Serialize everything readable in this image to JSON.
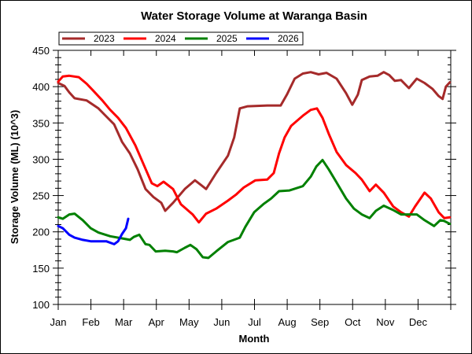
{
  "chart_data": {
    "type": "line",
    "title": "Water Storage Volume at Waranga Basin",
    "xlabel": "Month",
    "ylabel": "Storage Volume (ML) (10^3)",
    "ylim": [
      100,
      450
    ],
    "xlim": [
      0,
      12
    ],
    "yticks": [
      100,
      150,
      200,
      250,
      300,
      350,
      400,
      450
    ],
    "y_minor_step": 10,
    "x_tick_labels": [
      "Jan",
      "Feb",
      "Mar",
      "Apr",
      "May",
      "Jun",
      "Jul",
      "Aug",
      "Sep",
      "Oct",
      "Nov",
      "Dec"
    ],
    "x_units": "months since Jan 1",
    "grid": false,
    "legend_position": "top-left",
    "series": [
      {
        "name": "2023",
        "color": "#a52a2a",
        "points": [
          [
            0,
            405
          ],
          [
            0.19,
            401
          ],
          [
            0.34,
            392
          ],
          [
            0.5,
            384
          ],
          [
            0.87,
            381
          ],
          [
            1.23,
            370
          ],
          [
            1.47,
            359
          ],
          [
            1.71,
            348
          ],
          [
            1.95,
            324
          ],
          [
            2.19,
            308
          ],
          [
            2.43,
            286
          ],
          [
            2.67,
            259
          ],
          [
            2.91,
            248
          ],
          [
            3.15,
            240
          ],
          [
            3.27,
            229
          ],
          [
            3.51,
            240
          ],
          [
            3.87,
            259
          ],
          [
            4.18,
            271
          ],
          [
            4.35,
            265
          ],
          [
            4.52,
            259
          ],
          [
            4.83,
            281
          ],
          [
            5.19,
            305
          ],
          [
            5.38,
            330
          ],
          [
            5.55,
            370
          ],
          [
            5.79,
            373
          ],
          [
            6.39,
            374
          ],
          [
            6.8,
            374
          ],
          [
            6.99,
            389
          ],
          [
            7.23,
            411
          ],
          [
            7.48,
            418
          ],
          [
            7.72,
            420
          ],
          [
            7.96,
            417
          ],
          [
            8.2,
            419
          ],
          [
            8.51,
            411
          ],
          [
            8.8,
            391
          ],
          [
            8.99,
            375
          ],
          [
            9.16,
            389
          ],
          [
            9.28,
            409
          ],
          [
            9.52,
            414
          ],
          [
            9.76,
            415
          ],
          [
            9.95,
            420
          ],
          [
            10.12,
            416
          ],
          [
            10.29,
            408
          ],
          [
            10.48,
            409
          ],
          [
            10.72,
            398
          ],
          [
            10.96,
            411
          ],
          [
            11.2,
            405
          ],
          [
            11.44,
            397
          ],
          [
            11.63,
            387
          ],
          [
            11.75,
            383
          ],
          [
            11.85,
            400
          ],
          [
            11.97,
            406
          ]
        ]
      },
      {
        "name": "2024",
        "color": "#ff0000",
        "points": [
          [
            0,
            407
          ],
          [
            0.14,
            414
          ],
          [
            0.34,
            415
          ],
          [
            0.63,
            413
          ],
          [
            0.87,
            404
          ],
          [
            1.06,
            395
          ],
          [
            1.35,
            381
          ],
          [
            1.59,
            368
          ],
          [
            1.83,
            357
          ],
          [
            2.07,
            343
          ],
          [
            2.36,
            319
          ],
          [
            2.62,
            292
          ],
          [
            2.86,
            267
          ],
          [
            3.03,
            263
          ],
          [
            3.22,
            269
          ],
          [
            3.51,
            259
          ],
          [
            3.75,
            238
          ],
          [
            4.11,
            224
          ],
          [
            4.3,
            213
          ],
          [
            4.52,
            225
          ],
          [
            4.83,
            232
          ],
          [
            5.19,
            243
          ],
          [
            5.43,
            251
          ],
          [
            5.67,
            261
          ],
          [
            6.03,
            271
          ],
          [
            6.39,
            272
          ],
          [
            6.59,
            281
          ],
          [
            6.75,
            308
          ],
          [
            6.92,
            330
          ],
          [
            7.12,
            346
          ],
          [
            7.48,
            360
          ],
          [
            7.72,
            368
          ],
          [
            7.91,
            370
          ],
          [
            8.08,
            357
          ],
          [
            8.27,
            335
          ],
          [
            8.51,
            310
          ],
          [
            8.8,
            292
          ],
          [
            9.09,
            281
          ],
          [
            9.28,
            272
          ],
          [
            9.52,
            256
          ],
          [
            9.71,
            265
          ],
          [
            9.95,
            254
          ],
          [
            10.24,
            235
          ],
          [
            10.48,
            227
          ],
          [
            10.72,
            221
          ],
          [
            10.91,
            235
          ],
          [
            11.2,
            254
          ],
          [
            11.39,
            246
          ],
          [
            11.63,
            227
          ],
          [
            11.8,
            219
          ],
          [
            11.97,
            220
          ]
        ]
      },
      {
        "name": "2025",
        "color": "#008000",
        "points": [
          [
            0,
            220
          ],
          [
            0.14,
            218
          ],
          [
            0.34,
            224
          ],
          [
            0.5,
            225
          ],
          [
            0.75,
            216
          ],
          [
            0.99,
            205
          ],
          [
            1.23,
            199
          ],
          [
            1.59,
            194
          ],
          [
            1.95,
            191
          ],
          [
            2.19,
            189
          ],
          [
            2.31,
            193
          ],
          [
            2.48,
            196
          ],
          [
            2.67,
            183
          ],
          [
            2.79,
            182
          ],
          [
            2.98,
            173
          ],
          [
            3.27,
            174
          ],
          [
            3.51,
            173
          ],
          [
            3.63,
            172
          ],
          [
            3.87,
            178
          ],
          [
            4.04,
            182
          ],
          [
            4.23,
            176
          ],
          [
            4.42,
            165
          ],
          [
            4.59,
            164
          ],
          [
            4.83,
            173
          ],
          [
            5.19,
            186
          ],
          [
            5.55,
            192
          ],
          [
            5.72,
            207
          ],
          [
            5.99,
            227
          ],
          [
            6.27,
            238
          ],
          [
            6.51,
            246
          ],
          [
            6.75,
            256
          ],
          [
            7.07,
            257
          ],
          [
            7.48,
            263
          ],
          [
            7.72,
            276
          ],
          [
            7.89,
            290
          ],
          [
            8.08,
            299
          ],
          [
            8.27,
            286
          ],
          [
            8.51,
            268
          ],
          [
            8.8,
            246
          ],
          [
            9.04,
            232
          ],
          [
            9.28,
            224
          ],
          [
            9.52,
            219
          ],
          [
            9.71,
            229
          ],
          [
            9.95,
            236
          ],
          [
            10.24,
            230
          ],
          [
            10.48,
            224
          ],
          [
            10.72,
            224
          ],
          [
            10.96,
            224
          ],
          [
            11.2,
            216
          ],
          [
            11.49,
            208
          ],
          [
            11.68,
            216
          ],
          [
            11.8,
            215
          ],
          [
            11.97,
            211
          ]
        ]
      },
      {
        "name": "2026",
        "color": "#0000ff",
        "points": [
          [
            0,
            208
          ],
          [
            0.14,
            205
          ],
          [
            0.34,
            196
          ],
          [
            0.5,
            192
          ],
          [
            0.75,
            189
          ],
          [
            0.99,
            187
          ],
          [
            1.23,
            187
          ],
          [
            1.47,
            187
          ],
          [
            1.71,
            183
          ],
          [
            1.83,
            187
          ],
          [
            1.95,
            197
          ],
          [
            2.07,
            205
          ],
          [
            2.14,
            218
          ]
        ]
      }
    ]
  }
}
